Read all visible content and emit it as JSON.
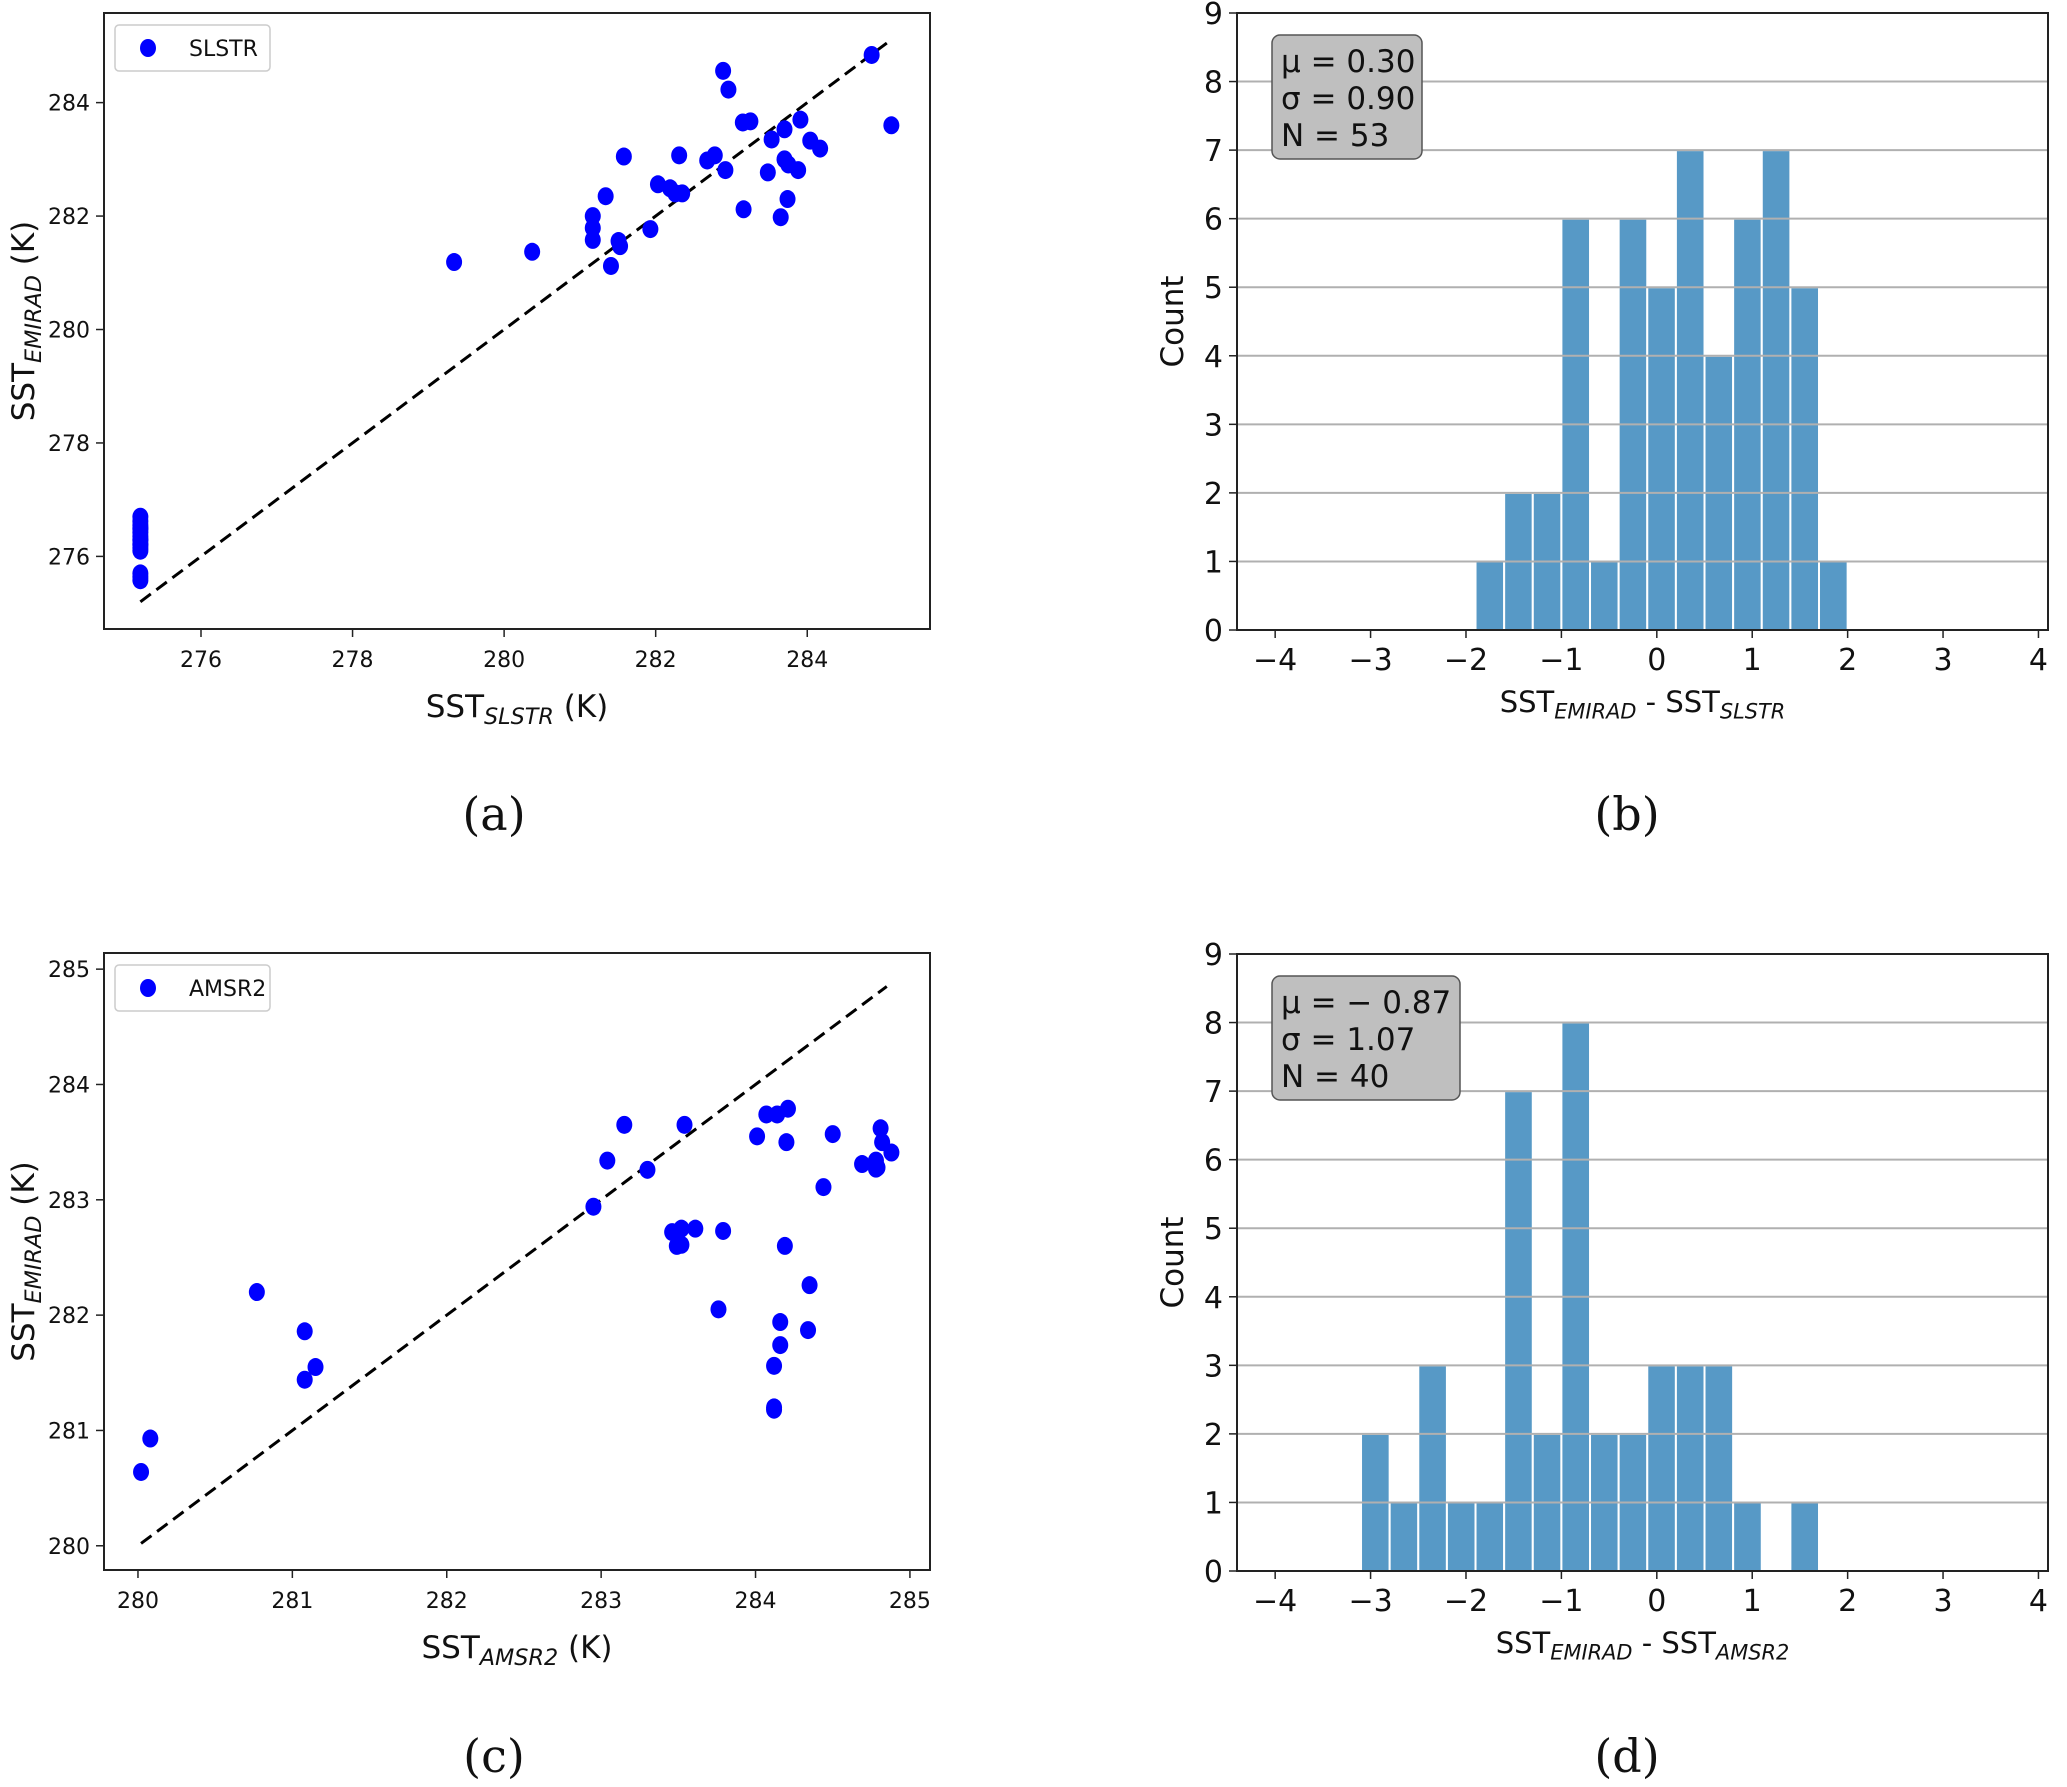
{
  "figure": {
    "panel_labels": [
      "(a)",
      "(b)",
      "(c)",
      "(d)"
    ]
  },
  "colors": {
    "scatter_point": "#0000ff",
    "hist_bar": "#5799c6",
    "grid": "#b0b0b0",
    "stats_box": "#bfbfbf",
    "identity_line": "#000000"
  },
  "chart_data": [
    {
      "id": "a",
      "type": "scatter",
      "title": "",
      "xlabel": {
        "main": "SST",
        "sub": "SLSTR",
        "unit": " (K)"
      },
      "ylabel": {
        "main": "SST",
        "sub": "EMIRAD",
        "unit": " (K)"
      },
      "xlim": [
        274.72,
        285.62
      ],
      "ylim": [
        274.72,
        285.58
      ],
      "xticks": [
        276,
        278,
        280,
        282,
        284
      ],
      "yticks": [
        276,
        278,
        280,
        282,
        284
      ],
      "grid": false,
      "legend": {
        "label": "SLSTR",
        "position": "upper-left"
      },
      "identity_line": {
        "from": 275.2,
        "to": 285.05,
        "style": "dashed"
      },
      "series": [
        {
          "name": "SLSTR",
          "points": [
            [
              284.85,
              284.84
            ],
            [
              282.89,
              284.56
            ],
            [
              282.96,
              284.23
            ],
            [
              285.11,
              283.6
            ],
            [
              283.15,
              283.65
            ],
            [
              283.25,
              283.67
            ],
            [
              283.91,
              283.7
            ],
            [
              283.7,
              283.53
            ],
            [
              283.53,
              283.35
            ],
            [
              284.04,
              283.33
            ],
            [
              284.17,
              283.19
            ],
            [
              281.58,
              283.05
            ],
            [
              282.31,
              283.07
            ],
            [
              282.78,
              283.07
            ],
            [
              282.68,
              282.98
            ],
            [
              283.7,
              283.0
            ],
            [
              283.75,
              282.91
            ],
            [
              283.88,
              282.81
            ],
            [
              282.92,
              282.81
            ],
            [
              283.48,
              282.77
            ],
            [
              282.03,
              282.56
            ],
            [
              282.19,
              282.49
            ],
            [
              282.26,
              282.4
            ],
            [
              282.35,
              282.4
            ],
            [
              281.34,
              282.35
            ],
            [
              283.74,
              282.3
            ],
            [
              283.16,
              282.12
            ],
            [
              283.65,
              281.98
            ],
            [
              281.17,
              282.0
            ],
            [
              281.17,
              281.79
            ],
            [
              281.17,
              281.58
            ],
            [
              281.93,
              281.77
            ],
            [
              281.51,
              281.56
            ],
            [
              281.53,
              281.47
            ],
            [
              280.37,
              281.37
            ],
            [
              279.34,
              281.19
            ],
            [
              281.41,
              281.12
            ],
            [
              275.2,
              276.7
            ],
            [
              275.2,
              276.62
            ],
            [
              275.2,
              276.55
            ],
            [
              275.2,
              276.48
            ],
            [
              275.2,
              276.42
            ],
            [
              275.2,
              276.35
            ],
            [
              275.2,
              276.28
            ],
            [
              275.2,
              276.22
            ],
            [
              275.2,
              276.15
            ],
            [
              275.2,
              276.1
            ],
            [
              275.2,
              276.5
            ],
            [
              275.2,
              276.3
            ],
            [
              275.2,
              276.2
            ],
            [
              275.2,
              275.7
            ],
            [
              275.2,
              275.64
            ],
            [
              275.2,
              275.58
            ]
          ]
        }
      ]
    },
    {
      "id": "b",
      "type": "bar",
      "subtype": "histogram",
      "title": "",
      "xlabel": {
        "parts": [
          {
            "main": "SST",
            "sub": "EMIRAD"
          },
          {
            "sep": " - "
          },
          {
            "main": "SST",
            "sub": "SLSTR"
          }
        ]
      },
      "ylabel": "Count",
      "xlim": [
        -4.4,
        4.1
      ],
      "ylim": [
        0,
        9
      ],
      "xticks": [
        -4,
        -3,
        -2,
        -1,
        0,
        1,
        2,
        3,
        4
      ],
      "xtick_labels": [
        "−4",
        "−3",
        "−2",
        "−1",
        "0",
        "1",
        "2",
        "3",
        "4"
      ],
      "yticks": [
        0,
        1,
        2,
        3,
        4,
        5,
        6,
        7,
        8,
        9
      ],
      "grid": "y",
      "bin_edges": [
        -1.9,
        -1.6,
        -1.3,
        -1.0,
        -0.7,
        -0.4,
        -0.1,
        0.2,
        0.5,
        0.8,
        1.1,
        1.4,
        1.7,
        2.0
      ],
      "counts": [
        1,
        2,
        2,
        6,
        1,
        6,
        5,
        7,
        4,
        6,
        7,
        5,
        1
      ],
      "stats": {
        "mu": "μ = 0.30",
        "sigma": "σ = 0.90",
        "n": "N = 53"
      }
    },
    {
      "id": "c",
      "type": "scatter",
      "title": "",
      "xlabel": {
        "main": "SST",
        "sub": "AMSR2",
        "unit": " (K)"
      },
      "ylabel": {
        "main": "SST",
        "sub": "EMIRAD",
        "unit": " (K)"
      },
      "xlim": [
        279.78,
        285.13
      ],
      "ylim": [
        279.79,
        285.14
      ],
      "xticks": [
        280,
        281,
        282,
        283,
        284,
        285
      ],
      "yticks": [
        280,
        281,
        282,
        283,
        284,
        285
      ],
      "grid": false,
      "legend": {
        "label": "AMSR2",
        "position": "upper-left"
      },
      "identity_line": {
        "from": 280.02,
        "to": 284.85,
        "style": "dashed"
      },
      "series": [
        {
          "name": "AMSR2",
          "points": [
            [
              280.02,
              280.64
            ],
            [
              280.08,
              280.93
            ],
            [
              280.77,
              282.2
            ],
            [
              281.08,
              281.86
            ],
            [
              281.08,
              281.44
            ],
            [
              281.15,
              281.55
            ],
            [
              282.95,
              282.94
            ],
            [
              283.04,
              283.34
            ],
            [
              283.15,
              283.65
            ],
            [
              283.3,
              283.26
            ],
            [
              283.54,
              283.65
            ],
            [
              283.46,
              282.72
            ],
            [
              283.52,
              282.75
            ],
            [
              283.61,
              282.75
            ],
            [
              283.49,
              282.6
            ],
            [
              283.52,
              282.61
            ],
            [
              283.79,
              282.73
            ],
            [
              283.76,
              282.05
            ],
            [
              284.01,
              283.55
            ],
            [
              284.07,
              283.74
            ],
            [
              284.14,
              283.74
            ],
            [
              284.21,
              283.79
            ],
            [
              284.2,
              283.5
            ],
            [
              284.19,
              282.6
            ],
            [
              284.35,
              282.26
            ],
            [
              284.44,
              283.11
            ],
            [
              284.5,
              283.57
            ],
            [
              284.16,
              281.94
            ],
            [
              284.16,
              281.74
            ],
            [
              284.34,
              281.87
            ],
            [
              284.12,
              281.56
            ],
            [
              284.12,
              281.2
            ],
            [
              284.12,
              281.18
            ],
            [
              284.69,
              283.31
            ],
            [
              284.78,
              283.34
            ],
            [
              284.79,
              283.28
            ],
            [
              284.81,
              283.62
            ],
            [
              284.82,
              283.5
            ],
            [
              284.88,
              283.41
            ],
            [
              284.78,
              283.27
            ]
          ]
        }
      ]
    },
    {
      "id": "d",
      "type": "bar",
      "subtype": "histogram",
      "title": "",
      "xlabel": {
        "parts": [
          {
            "main": "SST",
            "sub": "EMIRAD"
          },
          {
            "sep": " - "
          },
          {
            "main": "SST",
            "sub": "AMSR2"
          }
        ]
      },
      "ylabel": "Count",
      "xlim": [
        -4.4,
        4.1
      ],
      "ylim": [
        0,
        9
      ],
      "xticks": [
        -4,
        -3,
        -2,
        -1,
        0,
        1,
        2,
        3,
        4
      ],
      "xtick_labels": [
        "−4",
        "−3",
        "−2",
        "−1",
        "0",
        "1",
        "2",
        "3",
        "4"
      ],
      "yticks": [
        0,
        1,
        2,
        3,
        4,
        5,
        6,
        7,
        8,
        9
      ],
      "grid": "y",
      "bin_edges": [
        -3.1,
        -2.8,
        -2.5,
        -2.2,
        -1.9,
        -1.6,
        -1.3,
        -1.0,
        -0.7,
        -0.4,
        -0.1,
        0.2,
        0.5,
        0.8,
        1.1,
        1.4,
        1.7
      ],
      "counts": [
        2,
        1,
        3,
        1,
        1,
        7,
        2,
        8,
        2,
        2,
        3,
        3,
        3,
        1,
        0,
        1
      ],
      "stats": {
        "mu": "μ = − 0.87",
        "sigma": "σ = 1.07",
        "n": "N = 40"
      }
    }
  ]
}
